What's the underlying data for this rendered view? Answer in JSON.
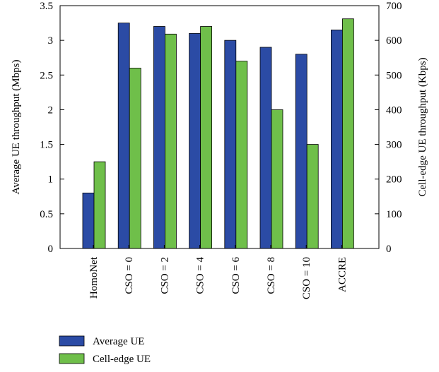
{
  "chart_data": {
    "type": "bar",
    "categories": [
      "HomoNet",
      "CSO = 0",
      "CSO = 2",
      "CSO = 4",
      "CSO = 6",
      "CSO = 8",
      "CSO = 10",
      "ACCRE"
    ],
    "series": [
      {
        "name": "Average UE",
        "axis": "left",
        "color": "#2b4ba5",
        "values": [
          0.8,
          3.25,
          3.2,
          3.1,
          3.0,
          2.9,
          2.8,
          3.15
        ]
      },
      {
        "name": "Cell-edge UE",
        "axis": "right",
        "color": "#6fbf4a",
        "values": [
          250,
          520,
          618,
          640,
          540,
          400,
          300,
          662
        ]
      }
    ],
    "ylabel_left": "Average UE throughput (Mbps)",
    "ylabel_right": "Cell-edge UE throughput (Kbps)",
    "ylim_left": [
      0,
      3.5
    ],
    "ylim_right": [
      0,
      700
    ],
    "yticks_left": [
      "0",
      "0.5",
      "1",
      "1.5",
      "2",
      "2.5",
      "3",
      "3.5"
    ],
    "yticks_right": [
      "0",
      "100",
      "200",
      "300",
      "400",
      "500",
      "600",
      "700"
    ],
    "grid": false,
    "legend_position": "bottom-left"
  }
}
